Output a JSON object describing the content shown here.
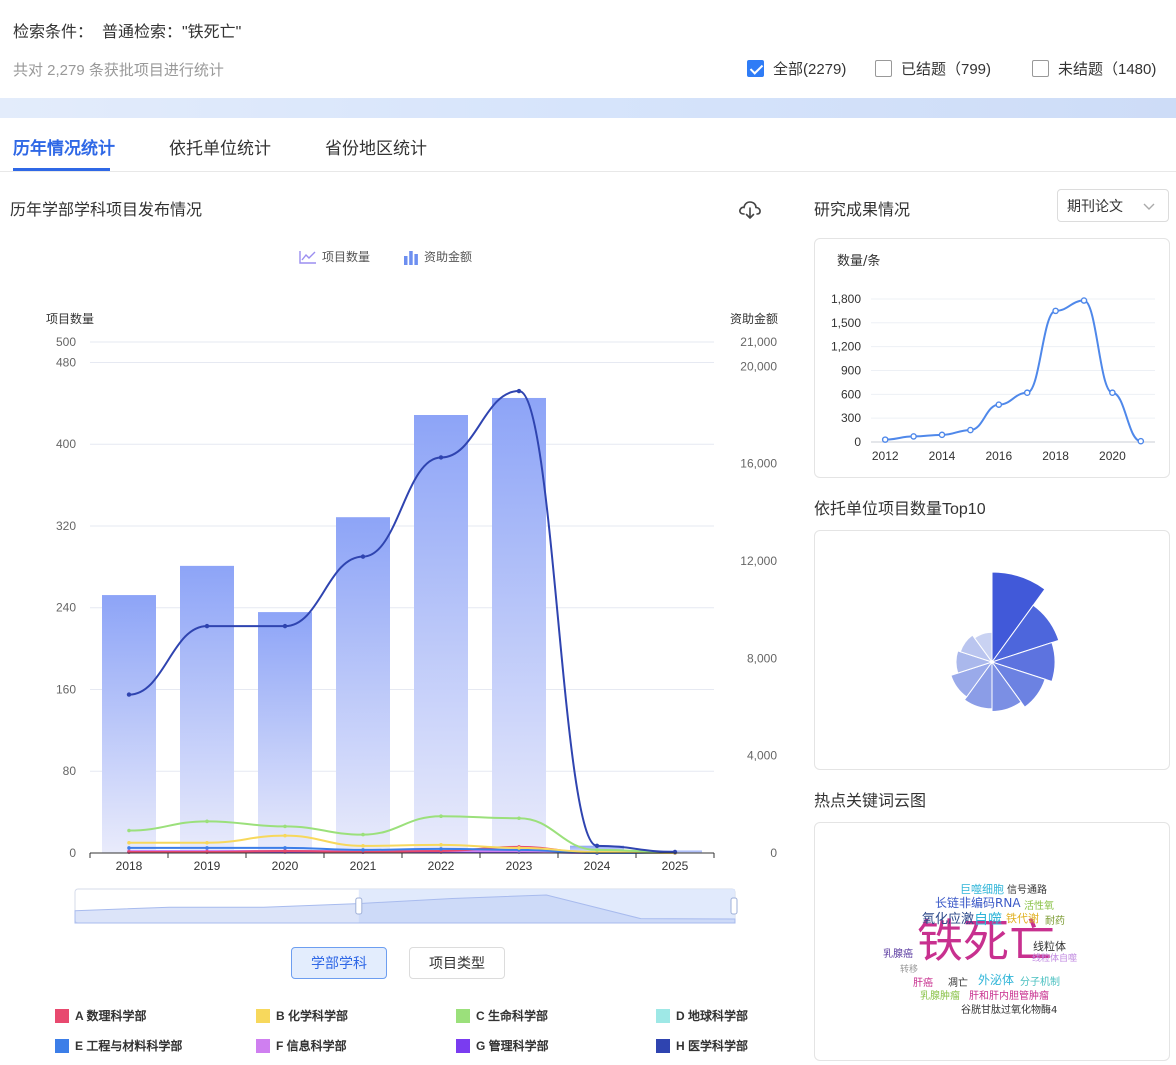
{
  "header": {
    "criteria_label": "检索条件：",
    "criteria_value": "普通检索：\"铁死亡\"",
    "summary": "共对 2,279 条获批项目进行统计",
    "filters": [
      {
        "label": "全部(2279)",
        "checked": true
      },
      {
        "label": "已结题（799)",
        "checked": false
      },
      {
        "label": "未结题（1480)",
        "checked": false
      }
    ]
  },
  "tabs": [
    {
      "label": "历年情况统计",
      "active": true
    },
    {
      "label": "依托单位统计",
      "active": false
    },
    {
      "label": "省份地区统计",
      "active": false
    }
  ],
  "left": {
    "title": "历年学部学科项目发布情况",
    "legend": {
      "line_label": "项目数量",
      "bar_label": "资助金额"
    },
    "buttons": [
      {
        "label": "学部学科",
        "active": true
      },
      {
        "label": "项目类型",
        "active": false
      }
    ],
    "subjects": [
      {
        "code": "A",
        "name": "A 数理科学部",
        "color": "#e8496f"
      },
      {
        "code": "B",
        "name": "B 化学科学部",
        "color": "#f7d85c"
      },
      {
        "code": "C",
        "name": "C 生命科学部",
        "color": "#9be07b"
      },
      {
        "code": "D",
        "name": "D 地球科学部",
        "color": "#9ee8e6"
      },
      {
        "code": "E",
        "name": "E 工程与材料科学部",
        "color": "#3c7ee8"
      },
      {
        "code": "F",
        "name": "F 信息科学部",
        "color": "#cf7ff0"
      },
      {
        "code": "G",
        "name": "G 管理科学部",
        "color": "#7a3cf0"
      },
      {
        "code": "H",
        "name": "H 医学科学部",
        "color": "#2f44b0"
      }
    ]
  },
  "chart_data": [
    {
      "type": "bar",
      "title": "历年学部学科项目发布情况",
      "categories": [
        "2018",
        "2019",
        "2020",
        "2021",
        "2022",
        "2023",
        "2024",
        "2025"
      ],
      "left_axis": {
        "label": "项目数量",
        "ticks": [
          0,
          80,
          160,
          240,
          320,
          400,
          480,
          500
        ],
        "range": [
          0,
          500
        ]
      },
      "right_axis": {
        "label": "资助金额",
        "ticks": [
          "0",
          "4,000",
          "8,000",
          "12,000",
          "16,000",
          "20,000",
          "21,000"
        ],
        "range": [
          0,
          21000
        ]
      },
      "bar_series": {
        "name": "资助金额",
        "values": [
          10600,
          11800,
          9900,
          13800,
          18000,
          18700,
          300,
          100
        ]
      },
      "line_series": [
        {
          "name": "H 医学科学部",
          "color": "#2f44b0",
          "values": [
            155,
            222,
            222,
            290,
            387,
            452,
            7,
            1
          ]
        },
        {
          "name": "C 生命科学部",
          "color": "#9be07b",
          "values": [
            22,
            31,
            26,
            18,
            36,
            34,
            3,
            1
          ]
        },
        {
          "name": "B 化学科学部",
          "color": "#f7d85c",
          "values": [
            10,
            10,
            17,
            7,
            8,
            5,
            1,
            0
          ]
        },
        {
          "name": "E 工程与材料科学部",
          "color": "#3c7ee8",
          "values": [
            5,
            5,
            5,
            3,
            4,
            3,
            0,
            0
          ]
        },
        {
          "name": "A 数理科学部",
          "color": "#e8496f",
          "values": [
            1,
            1,
            2,
            1,
            2,
            6,
            0,
            0
          ]
        },
        {
          "name": "F 信息科学部",
          "color": "#cf7ff0",
          "values": [
            2,
            2,
            2,
            2,
            2,
            2,
            0,
            0
          ]
        },
        {
          "name": "G 管理科学部",
          "color": "#7a3cf0",
          "values": [
            1,
            1,
            1,
            1,
            1,
            1,
            0,
            0
          ]
        }
      ],
      "dataZoom": {
        "start_fraction": 0.43,
        "end_fraction": 1.0
      }
    },
    {
      "type": "line",
      "title": "研究成果情况",
      "ylabel": "数量/条",
      "x": [
        2012,
        2013,
        2014,
        2015,
        2016,
        2017,
        2018,
        2019,
        2020,
        2021
      ],
      "values": [
        30,
        70,
        90,
        150,
        470,
        620,
        1650,
        1780,
        620,
        10
      ],
      "x_ticks": [
        "2012",
        "2014",
        "2016",
        "2018",
        "2020"
      ],
      "y_ticks": [
        "0",
        "300",
        "600",
        "900",
        "1,200",
        "1,500",
        "1,800"
      ],
      "ylim": [
        0,
        1900
      ]
    },
    {
      "type": "pie",
      "title": "依托单位项目数量Top10",
      "rose": true,
      "values": [
        100,
        78,
        70,
        62,
        55,
        52,
        48,
        40,
        37,
        33
      ],
      "colors": [
        "#4159d9",
        "#4d66dc",
        "#5d73df",
        "#6c82e2",
        "#7b8fe4",
        "#8b9de7",
        "#9aaaea",
        "#aab8ec",
        "#bac5ef",
        "#c9d2f2"
      ]
    }
  ],
  "right": {
    "results_title": "研究成果情况",
    "dropdown_value": "期刊论文",
    "results_ylabel": "数量/条",
    "top10_title": "依托单位项目数量Top10",
    "wordcloud_title": "热点关键词云图",
    "words": [
      {
        "text": "铁死亡",
        "color": "#c8308f"
      },
      {
        "text": "巨噬细胞",
        "color": "#2fb5d8"
      },
      {
        "text": "信号通路",
        "color": "#333333"
      },
      {
        "text": "长链非编码RNA",
        "color": "#3a58c7"
      },
      {
        "text": "活性氧",
        "color": "#8bc34a"
      },
      {
        "text": "氧化应激",
        "color": "#2d4a8a"
      },
      {
        "text": "自噬",
        "color": "#2fb5d8"
      },
      {
        "text": "铁代谢",
        "color": "#e0b020"
      },
      {
        "text": "耐药",
        "color": "#7a9a30"
      },
      {
        "text": "线粒体",
        "color": "#333333"
      },
      {
        "text": "线粒体自噬",
        "color": "#c08ae0"
      },
      {
        "text": "乳腺癌",
        "color": "#5a3aa0"
      },
      {
        "text": "转移",
        "color": "#999999"
      },
      {
        "text": "肝癌",
        "color": "#c8308f"
      },
      {
        "text": "凋亡",
        "color": "#333333"
      },
      {
        "text": "外泌体",
        "color": "#2fb5d8"
      },
      {
        "text": "分子机制",
        "color": "#4ac0c0"
      },
      {
        "text": "乳腺肿瘤",
        "color": "#8bc34a"
      },
      {
        "text": "肝和肝内胆管肿瘤",
        "color": "#c8308f"
      },
      {
        "text": "谷胱甘肽过氧化物酶4",
        "color": "#333333"
      }
    ]
  }
}
